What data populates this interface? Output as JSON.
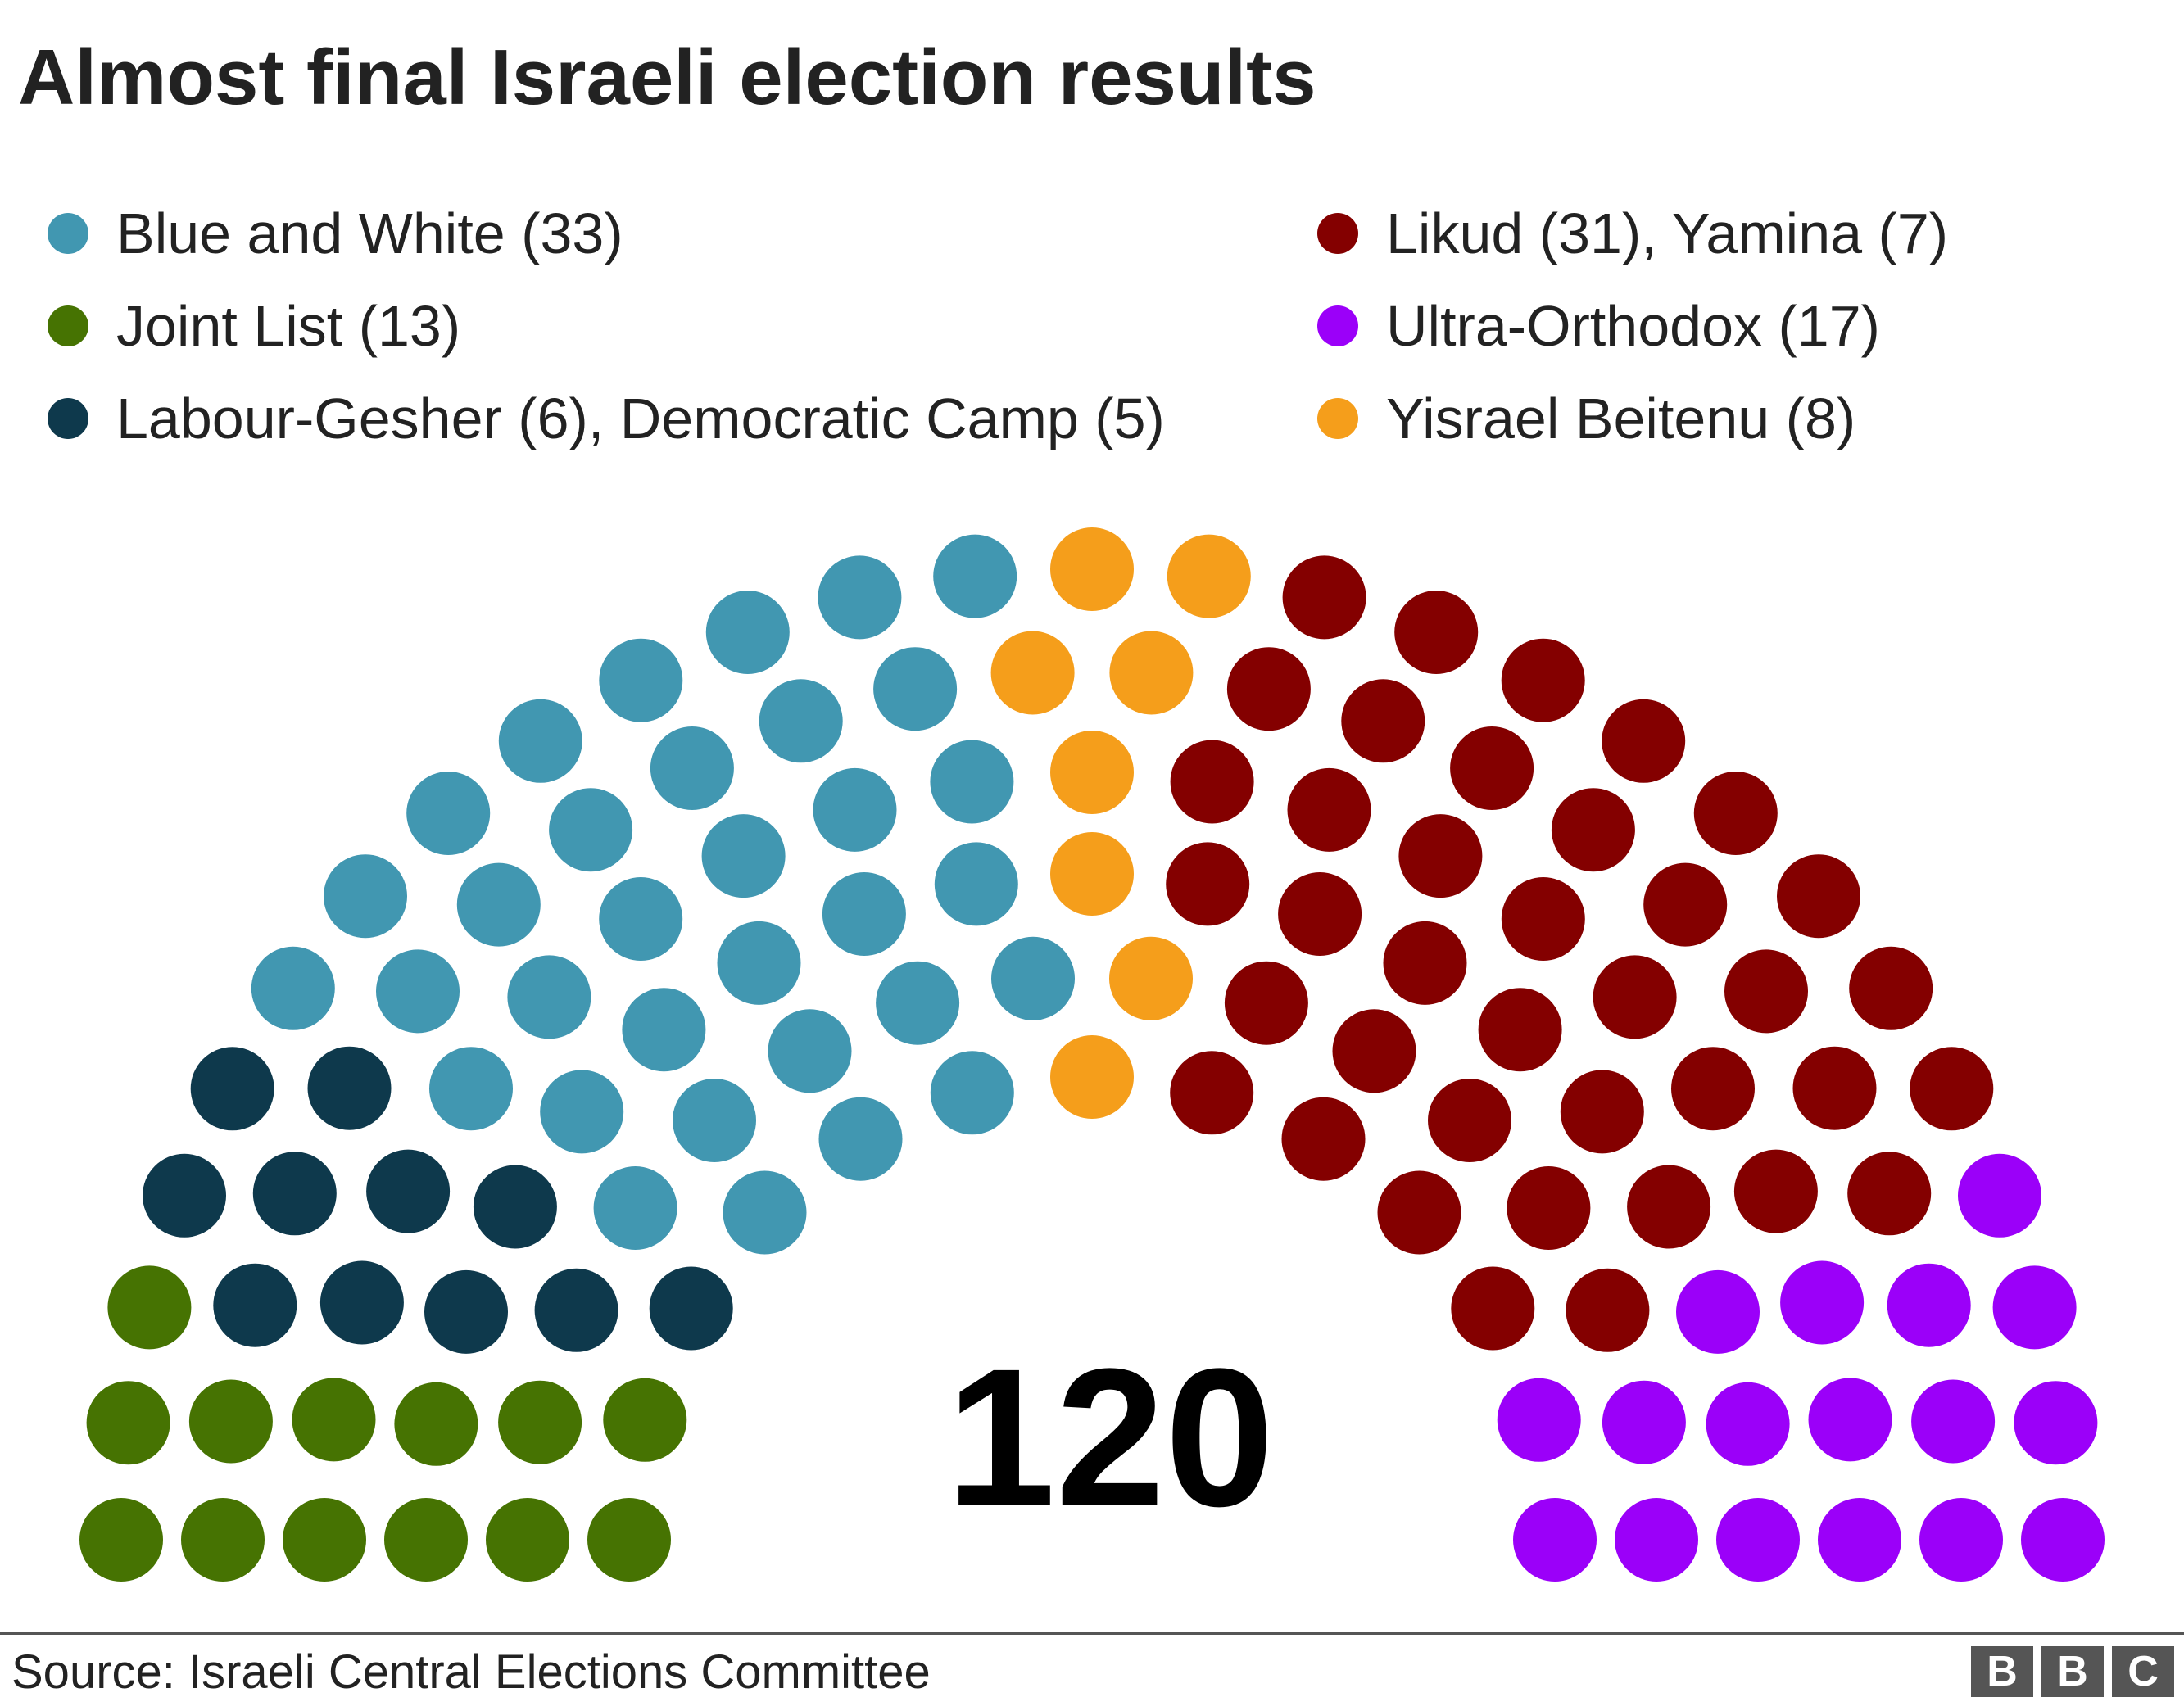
{
  "title": "Almost final Israeli election results",
  "source": "Source: Israeli Central Elections Committee",
  "logo": {
    "letters": [
      "B",
      "B",
      "C"
    ]
  },
  "chart_data": {
    "type": "parliament",
    "title": "Almost final Israeli election results",
    "total_seats": 120,
    "total_label": "120",
    "rows": 6,
    "legend_placement": "top",
    "legend": [
      {
        "label": "Blue and White (33)",
        "color": "#4197b1"
      },
      {
        "label": "Joint List (13)",
        "color": "#467302"
      },
      {
        "label": "Labour-Gesher (6), Democratic Camp (5)",
        "color": "#0e394c"
      },
      {
        "label": "Likud (31), Yamina (7)",
        "color": "#840000"
      },
      {
        "label": "Ultra-Orthodox (17)",
        "color": "#9b00f9"
      },
      {
        "label": "Yisrael Beitenu (8)",
        "color": "#f59e1b"
      }
    ],
    "blocs": [
      {
        "name": "Joint List",
        "seats": 13,
        "color": "#467302"
      },
      {
        "name": "Labour-Gesher, Democratic Camp",
        "seats": 11,
        "color": "#0e394c"
      },
      {
        "name": "Blue and White",
        "seats": 33,
        "color": "#4197b1"
      },
      {
        "name": "Yisrael Beitenu",
        "seats": 8,
        "color": "#f59e1b"
      },
      {
        "name": "Likud, Yamina",
        "seats": 38,
        "color": "#840000"
      },
      {
        "name": "Ultra-Orthodox",
        "seats": 17,
        "color": "#9b00f9"
      }
    ]
  }
}
